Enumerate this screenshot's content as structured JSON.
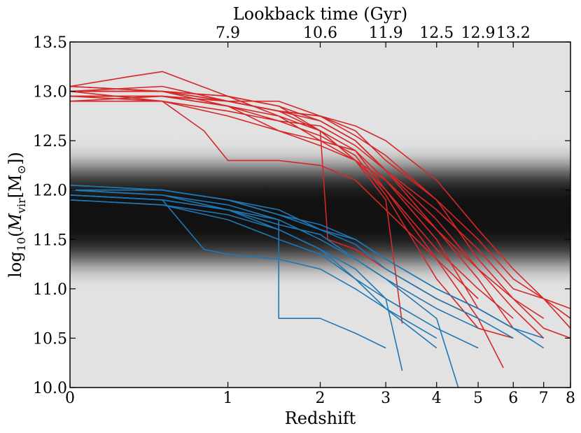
{
  "chart_data": {
    "type": "line",
    "x_scale": "log(1+z)",
    "xlabel": "Redshift",
    "ylabel_parts": {
      "base": "log",
      "base_sub": "10",
      "open": "(",
      "M": "M",
      "sub": "vir",
      "unit_open": "[M",
      "unit_sym": "⊙",
      "unit_close": "])"
    },
    "top_axis_label": "Lookback time (Gyr)",
    "xlim": [
      0,
      8
    ],
    "ylim": [
      10.0,
      13.5
    ],
    "x_ticks": [
      0,
      1,
      2,
      3,
      4,
      5,
      6,
      7,
      8
    ],
    "x_tick_labels": [
      "0",
      "1",
      "2",
      "3",
      "4",
      "5",
      "6",
      "7",
      "8"
    ],
    "y_ticks": [
      10.0,
      10.5,
      11.0,
      11.5,
      12.0,
      12.5,
      13.0,
      13.5
    ],
    "y_tick_labels": [
      "10.0",
      "10.5",
      "11.0",
      "11.5",
      "12.0",
      "12.5",
      "13.0",
      "13.5"
    ],
    "top_ticks_z": [
      1,
      2,
      3,
      4,
      5,
      6
    ],
    "top_tick_labels": [
      "7.9",
      "10.6",
      "11.9",
      "12.5",
      "12.9",
      "13.2"
    ],
    "background_band": {
      "center": 11.75,
      "sigma": 0.5,
      "color_center": "#111111",
      "color_edge": "#e2e2e2"
    },
    "series": [
      {
        "color": "#d62728",
        "tracks": [
          [
            [
              0,
              13.0
            ],
            [
              0.5,
              13.0
            ],
            [
              1,
              12.85
            ],
            [
              1.5,
              12.75
            ],
            [
              2,
              12.6
            ],
            [
              2.5,
              12.3
            ],
            [
              3,
              12.0
            ],
            [
              4,
              11.4
            ],
            [
              5,
              11.0
            ],
            [
              6,
              10.7
            ]
          ],
          [
            [
              0,
              12.95
            ],
            [
              0.5,
              12.95
            ],
            [
              1,
              12.9
            ],
            [
              1.5,
              12.8
            ],
            [
              2,
              12.7
            ],
            [
              2.5,
              12.5
            ],
            [
              3,
              12.2
            ],
            [
              4,
              11.7
            ],
            [
              5,
              11.2
            ],
            [
              6,
              10.9
            ],
            [
              7,
              10.7
            ]
          ],
          [
            [
              0,
              13.05
            ],
            [
              0.3,
              13.15
            ],
            [
              0.5,
              13.2
            ],
            [
              1,
              12.95
            ],
            [
              1.5,
              12.85
            ],
            [
              2,
              12.7
            ],
            [
              2.5,
              12.5
            ],
            [
              3,
              12.2
            ],
            [
              4,
              11.6
            ],
            [
              5,
              11.1
            ],
            [
              6,
              10.6
            ]
          ],
          [
            [
              0,
              12.9
            ],
            [
              0.5,
              12.95
            ],
            [
              1,
              12.9
            ],
            [
              1.5,
              12.8
            ],
            [
              2,
              12.75
            ],
            [
              2.5,
              12.55
            ],
            [
              3,
              12.35
            ],
            [
              4,
              11.9
            ],
            [
              5,
              11.5
            ],
            [
              6,
              11.1
            ],
            [
              7,
              10.9
            ],
            [
              8,
              10.7
            ]
          ],
          [
            [
              0,
              13.0
            ],
            [
              0.5,
              12.9
            ],
            [
              0.8,
              12.6
            ],
            [
              1,
              12.3
            ],
            [
              1.5,
              12.3
            ],
            [
              2,
              12.25
            ],
            [
              2.5,
              12.1
            ],
            [
              3,
              11.8
            ],
            [
              4,
              11.3
            ],
            [
              5,
              10.9
            ]
          ],
          [
            [
              0,
              12.95
            ],
            [
              0.5,
              12.95
            ],
            [
              1,
              12.85
            ],
            [
              1.5,
              12.6
            ],
            [
              2,
              12.45
            ],
            [
              2.5,
              12.3
            ],
            [
              3,
              12.1
            ],
            [
              4,
              11.6
            ],
            [
              5,
              11.2
            ],
            [
              6,
              10.8
            ],
            [
              7,
              10.5
            ]
          ],
          [
            [
              0,
              13.05
            ],
            [
              0.5,
              13.0
            ],
            [
              1,
              12.95
            ],
            [
              1.5,
              12.85
            ],
            [
              2,
              12.6
            ],
            [
              2.1,
              11.5
            ],
            [
              2.5,
              11.4
            ],
            [
              3,
              11.2
            ],
            [
              4,
              10.9
            ],
            [
              5,
              10.7
            ]
          ],
          [
            [
              0,
              13.0
            ],
            [
              0.5,
              13.05
            ],
            [
              1,
              12.9
            ],
            [
              1.5,
              12.9
            ],
            [
              2,
              12.75
            ],
            [
              2.5,
              12.65
            ],
            [
              3,
              12.5
            ],
            [
              4,
              12.1
            ],
            [
              5,
              11.6
            ],
            [
              6,
              11.2
            ],
            [
              7,
              10.9
            ],
            [
              8,
              10.6
            ]
          ],
          [
            [
              0,
              12.95
            ],
            [
              0.5,
              12.9
            ],
            [
              1,
              12.75
            ],
            [
              1.5,
              12.6
            ],
            [
              2,
              12.5
            ],
            [
              2.5,
              12.3
            ],
            [
              3,
              11.9
            ],
            [
              3.3,
              10.65
            ]
          ],
          [
            [
              0,
              13.0
            ],
            [
              0.5,
              13.0
            ],
            [
              1,
              12.9
            ],
            [
              1.5,
              12.8
            ],
            [
              2,
              12.75
            ],
            [
              2.5,
              12.6
            ],
            [
              3,
              12.3
            ],
            [
              4,
              11.9
            ],
            [
              5,
              11.3
            ],
            [
              6,
              10.9
            ],
            [
              7,
              10.6
            ],
            [
              8,
              10.5
            ]
          ],
          [
            [
              0,
              13.05
            ],
            [
              0.5,
              13.0
            ],
            [
              1,
              12.95
            ],
            [
              1.5,
              12.75
            ],
            [
              2,
              12.5
            ],
            [
              2.5,
              12.4
            ],
            [
              3,
              12.0
            ],
            [
              4,
              11.3
            ],
            [
              5,
              10.7
            ],
            [
              5.7,
              10.2
            ]
          ],
          [
            [
              0,
              12.9
            ],
            [
              0.5,
              12.9
            ],
            [
              1,
              12.8
            ],
            [
              1.5,
              12.7
            ],
            [
              2,
              12.65
            ],
            [
              2.5,
              12.45
            ],
            [
              3,
              12.2
            ],
            [
              4,
              11.8
            ],
            [
              5,
              11.4
            ],
            [
              6,
              11.0
            ],
            [
              7,
              10.9
            ],
            [
              8,
              10.8
            ]
          ],
          [
            [
              0,
              13.0
            ],
            [
              0.5,
              13.0
            ],
            [
              1,
              12.9
            ],
            [
              1.5,
              12.8
            ],
            [
              2,
              12.6
            ],
            [
              2.5,
              12.4
            ],
            [
              3,
              12.1
            ],
            [
              4,
              11.5
            ],
            [
              5,
              10.8
            ],
            [
              6,
              10.6
            ]
          ],
          [
            [
              0,
              12.95
            ],
            [
              0.5,
              12.95
            ],
            [
              1,
              12.85
            ],
            [
              1.5,
              12.7
            ],
            [
              2,
              12.55
            ],
            [
              2.5,
              12.35
            ],
            [
              3,
              11.95
            ],
            [
              4,
              11.1
            ],
            [
              5,
              10.6
            ],
            [
              6,
              10.5
            ]
          ]
        ]
      },
      {
        "color": "#1f77b4",
        "tracks": [
          [
            [
              0,
              12.0
            ],
            [
              0.5,
              11.95
            ],
            [
              1,
              11.8
            ],
            [
              1.5,
              11.7
            ],
            [
              2,
              11.5
            ],
            [
              2.5,
              11.3
            ],
            [
              3,
              11.1
            ],
            [
              4,
              10.8
            ],
            [
              5,
              10.6
            ]
          ],
          [
            [
              0,
              11.95
            ],
            [
              0.5,
              11.9
            ],
            [
              0.8,
              11.4
            ],
            [
              1,
              11.35
            ],
            [
              1.5,
              11.3
            ],
            [
              2,
              11.2
            ],
            [
              2.5,
              11.0
            ],
            [
              3,
              10.8
            ],
            [
              4,
              10.5
            ]
          ],
          [
            [
              0,
              12.05
            ],
            [
              0.5,
              12.0
            ],
            [
              1,
              11.9
            ],
            [
              1.5,
              11.75
            ],
            [
              2,
              11.6
            ],
            [
              2.5,
              11.45
            ],
            [
              3,
              11.2
            ],
            [
              4,
              10.9
            ],
            [
              5,
              10.7
            ],
            [
              6,
              10.5
            ]
          ],
          [
            [
              0,
              11.9
            ],
            [
              0.5,
              11.85
            ],
            [
              1,
              11.75
            ],
            [
              1.5,
              11.6
            ],
            [
              2,
              11.4
            ],
            [
              2.5,
              11.2
            ],
            [
              3,
              10.9
            ],
            [
              3.3,
              10.17
            ]
          ],
          [
            [
              0,
              12.0
            ],
            [
              0.5,
              11.95
            ],
            [
              1,
              11.85
            ],
            [
              1.5,
              11.7
            ],
            [
              1.5,
              10.7
            ],
            [
              2,
              10.7
            ],
            [
              2.5,
              10.55
            ],
            [
              3,
              10.4
            ]
          ],
          [
            [
              0,
              11.95
            ],
            [
              0.5,
              11.9
            ],
            [
              1,
              11.8
            ],
            [
              1.5,
              11.65
            ],
            [
              2,
              11.55
            ],
            [
              2.5,
              11.3
            ],
            [
              3,
              11.1
            ],
            [
              4,
              10.7
            ],
            [
              4.5,
              10.0
            ]
          ],
          [
            [
              0,
              12.05
            ],
            [
              0.5,
              12.0
            ],
            [
              1,
              11.9
            ],
            [
              1.5,
              11.8
            ],
            [
              2,
              11.6
            ],
            [
              2.5,
              11.5
            ],
            [
              3,
              11.3
            ],
            [
              4,
              11.0
            ],
            [
              5,
              10.8
            ],
            [
              6,
              10.6
            ],
            [
              7,
              10.5
            ]
          ],
          [
            [
              0,
              11.9
            ],
            [
              0.5,
              11.85
            ],
            [
              1,
              11.7
            ],
            [
              1.5,
              11.5
            ],
            [
              2,
              11.35
            ],
            [
              2.5,
              11.1
            ],
            [
              3,
              10.8
            ],
            [
              4,
              10.4
            ]
          ],
          [
            [
              0,
              12.0
            ],
            [
              0.5,
              12.0
            ],
            [
              1,
              11.9
            ],
            [
              1.5,
              11.75
            ],
            [
              2,
              11.65
            ],
            [
              2.5,
              11.5
            ],
            [
              3,
              11.3
            ],
            [
              4,
              11.0
            ],
            [
              5,
              10.8
            ],
            [
              6,
              10.6
            ],
            [
              7,
              10.4
            ]
          ],
          [
            [
              0,
              11.95
            ],
            [
              0.5,
              11.9
            ],
            [
              1,
              11.8
            ],
            [
              1.5,
              11.6
            ],
            [
              2,
              11.4
            ],
            [
              2.5,
              11.1
            ],
            [
              3,
              10.9
            ],
            [
              4,
              10.6
            ],
            [
              5,
              10.4
            ]
          ]
        ]
      }
    ]
  }
}
